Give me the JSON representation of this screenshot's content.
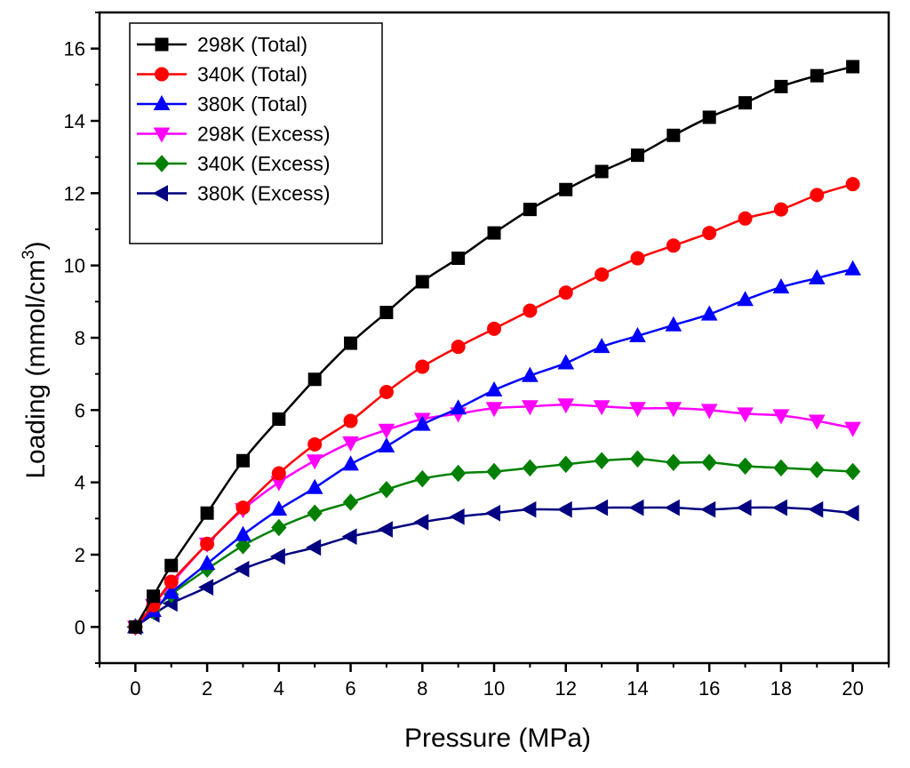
{
  "chart_data": {
    "type": "line",
    "title": "",
    "xlabel": "Pressure (MPa)",
    "ylabel": "Loading (mmol/cm",
    "ylabel_superscript": "3",
    "ylabel_close": ")",
    "xlim": [
      -1,
      21
    ],
    "ylim": [
      -1,
      17
    ],
    "x_ticks": [
      0,
      2,
      4,
      6,
      8,
      10,
      12,
      14,
      16,
      18,
      20
    ],
    "y_ticks": [
      0,
      2,
      4,
      6,
      8,
      10,
      12,
      14,
      16
    ],
    "x_tick_labels": [
      "0",
      "2",
      "4",
      "6",
      "8",
      "10",
      "12",
      "14",
      "16",
      "18",
      "20"
    ],
    "y_tick_labels": [
      "0",
      "2",
      "4",
      "6",
      "8",
      "10",
      "12",
      "14",
      "16"
    ],
    "grid": false,
    "legend_position": "top-left",
    "x": [
      0,
      0.5,
      1,
      2,
      3,
      4,
      5,
      6,
      7,
      8,
      9,
      10,
      11,
      12,
      13,
      14,
      15,
      16,
      17,
      18,
      19,
      20
    ],
    "series": [
      {
        "name": "298K (Total)",
        "color": "#000000",
        "marker": "square",
        "values": [
          0,
          0.85,
          1.7,
          3.15,
          4.6,
          5.75,
          6.85,
          7.85,
          8.7,
          9.55,
          10.2,
          10.9,
          11.55,
          12.1,
          12.6,
          13.05,
          13.6,
          14.1,
          14.5,
          14.95,
          15.25,
          15.5
        ]
      },
      {
        "name": "340K (Total)",
        "color": "#ff0000",
        "marker": "circle",
        "values": [
          0,
          0.6,
          1.25,
          2.3,
          3.3,
          4.25,
          5.05,
          5.7,
          6.5,
          7.2,
          7.75,
          8.25,
          8.75,
          9.25,
          9.75,
          10.2,
          10.55,
          10.9,
          11.3,
          11.55,
          11.95,
          12.25
        ]
      },
      {
        "name": "380K (Total)",
        "color": "#0000ff",
        "marker": "triangle-up",
        "values": [
          0,
          0.45,
          0.95,
          1.75,
          2.55,
          3.25,
          3.85,
          4.5,
          5.0,
          5.6,
          6.05,
          6.55,
          6.95,
          7.3,
          7.75,
          8.05,
          8.35,
          8.65,
          9.05,
          9.4,
          9.65,
          9.9
        ]
      },
      {
        "name": "298K (Excess)",
        "color": "#ff00ff",
        "marker": "triangle-down",
        "values": [
          0,
          0.6,
          1.2,
          2.3,
          3.25,
          4.0,
          4.6,
          5.1,
          5.45,
          5.75,
          5.9,
          6.05,
          6.1,
          6.15,
          6.1,
          6.05,
          6.05,
          6.0,
          5.9,
          5.85,
          5.7,
          5.5
        ]
      },
      {
        "name": "340K (Excess)",
        "color": "#008000",
        "marker": "diamond",
        "values": [
          0,
          0.45,
          0.9,
          1.6,
          2.25,
          2.75,
          3.15,
          3.45,
          3.8,
          4.1,
          4.25,
          4.3,
          4.4,
          4.5,
          4.6,
          4.65,
          4.55,
          4.55,
          4.45,
          4.4,
          4.35,
          4.3
        ]
      },
      {
        "name": "380K (Excess)",
        "color": "#000080",
        "marker": "triangle-left",
        "values": [
          0,
          0.35,
          0.65,
          1.1,
          1.6,
          1.95,
          2.2,
          2.5,
          2.7,
          2.9,
          3.05,
          3.15,
          3.25,
          3.25,
          3.3,
          3.3,
          3.3,
          3.25,
          3.3,
          3.3,
          3.25,
          3.15
        ]
      }
    ]
  }
}
